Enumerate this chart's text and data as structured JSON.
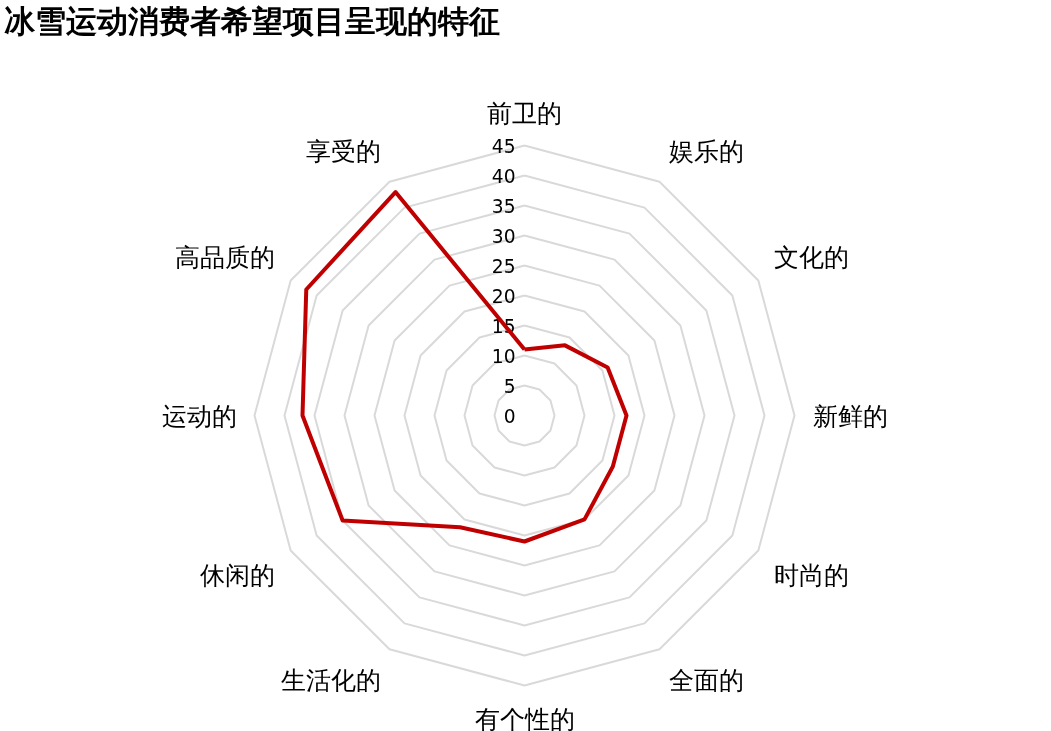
{
  "chart_data": {
    "type": "radar",
    "title": "冰雪运动消费者希望项目呈现的特征",
    "categories": [
      "前卫的",
      "娱乐的",
      "文化的",
      "新鲜的",
      "时尚的",
      "全面的",
      "有个性的",
      "生活化的",
      "休闲的",
      "运动的",
      "高品质的",
      "享受的"
    ],
    "series": [
      {
        "color": "#c00000",
        "values": [
          11,
          13.5,
          16,
          17,
          17,
          20,
          21,
          21.5,
          35,
          37,
          42,
          43
        ]
      }
    ],
    "ylim": [
      0,
      45
    ],
    "yticks": [
      0,
      5,
      10,
      15,
      20,
      25,
      30,
      35,
      40,
      45
    ],
    "grid": true,
    "marker": "none",
    "line_style": "solid"
  }
}
